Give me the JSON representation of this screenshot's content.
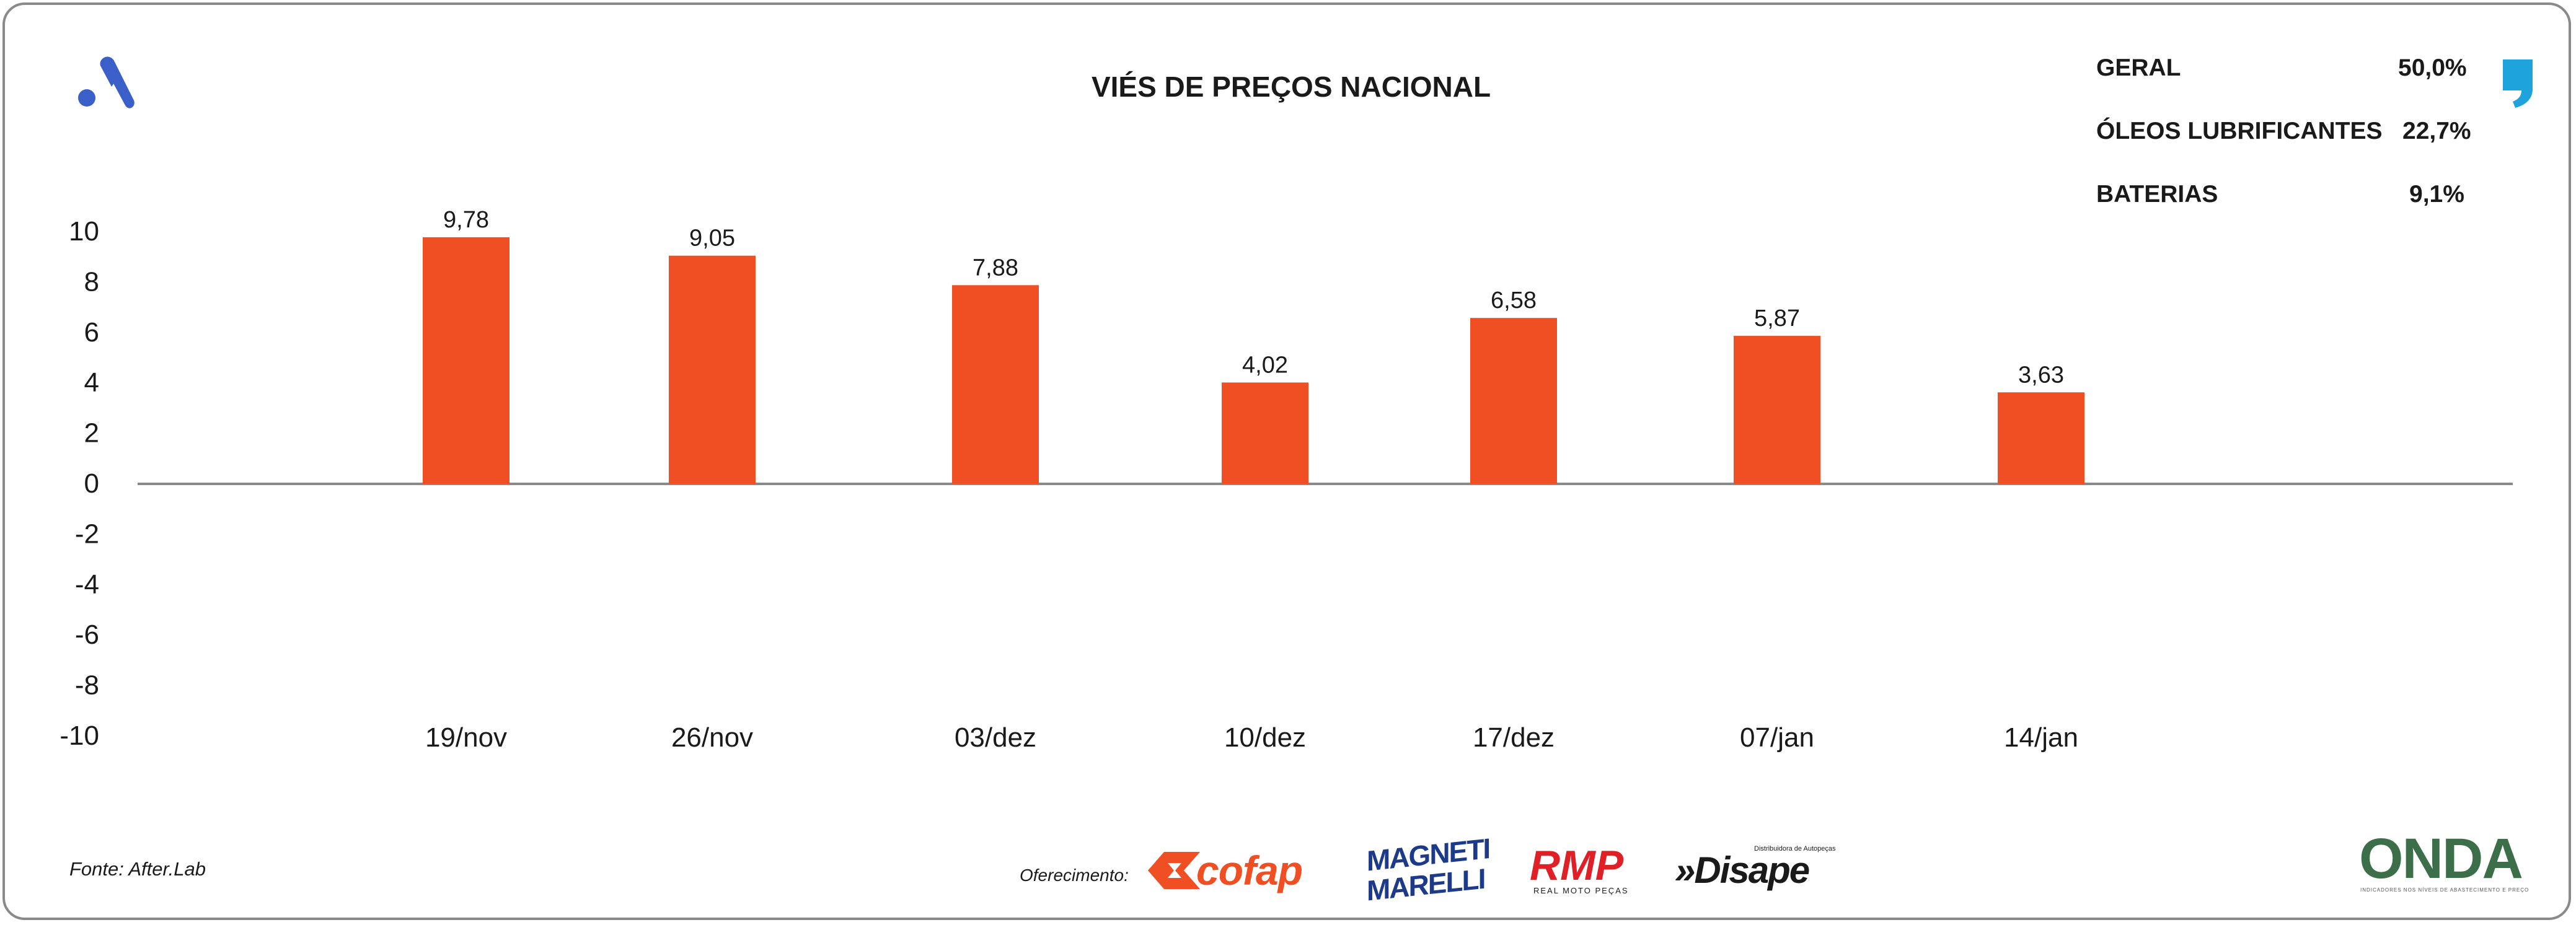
{
  "header": {
    "title": "VIÉS DE PREÇOS NACIONAL"
  },
  "stats": [
    {
      "label": "GERAL",
      "value": "50,0%"
    },
    {
      "label": "ÓLEOS LUBRIFICANTES",
      "value": "22,7%"
    },
    {
      "label": "BATERIAS",
      "value": "9,1%"
    }
  ],
  "chart_data": {
    "type": "bar",
    "title": "VIÉS DE PREÇOS NACIONAL",
    "categories": [
      "19/nov",
      "26/nov",
      "03/dez",
      "10/dez",
      "17/dez",
      "07/jan",
      "14/jan"
    ],
    "values": [
      9.78,
      9.05,
      7.88,
      4.02,
      6.58,
      5.87,
      3.63
    ],
    "value_labels": [
      "9,78",
      "9,05",
      "7,88",
      "4,02",
      "6,58",
      "5,87",
      "3,63"
    ],
    "ylim": [
      -10,
      10
    ],
    "yticks": [
      10,
      8,
      6,
      4,
      2,
      0,
      -2,
      -4,
      -6,
      -8,
      -10
    ],
    "xlabel": "",
    "ylabel": "",
    "grid": false,
    "bar_color": "#f04e23"
  },
  "footer": {
    "source": "Fonte: After.Lab",
    "sponsor_label": "Oferecimento:",
    "sponsors": [
      {
        "name": "cofap",
        "text": "cofap",
        "color": "#f04e23"
      },
      {
        "name": "magneti-marelli",
        "line1": "MAGNETI",
        "line2": "MARELLI",
        "color": "#1d3a8a"
      },
      {
        "name": "rmp",
        "text": "RMP",
        "sub": "REAL MOTO PEÇAS",
        "color": "#e02027"
      },
      {
        "name": "disape",
        "text": "»Disape",
        "sub": "Distribuidora de Autopeças",
        "color": "#1a1a1a"
      }
    ],
    "onda": {
      "text": "ONDA",
      "sub": "INDICADORES NOS NÍVEIS DE ABASTECIMENTO E PREÇO"
    }
  },
  "colors": {
    "brand_blue": "#3a5fc8",
    "accent_orange": "#f04e23",
    "axis_gray": "#8a8a8a",
    "quote_blue": "#1fa3dc"
  }
}
